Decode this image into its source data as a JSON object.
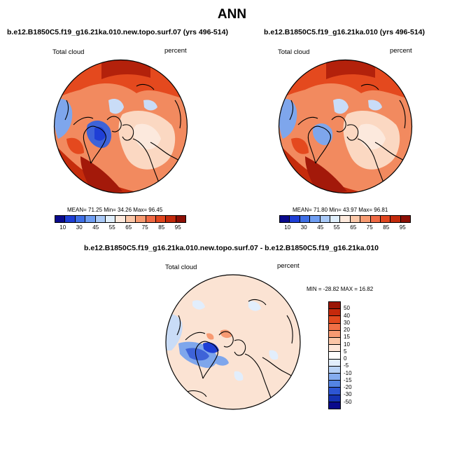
{
  "title": "ANN",
  "panels": [
    {
      "title": "b.e12.B1850C5.f19_g16.21ka.010.new.topo.surf.07 (yrs 496-514)",
      "variable_label": "Total cloud",
      "units_label": "percent",
      "stats": {
        "mean": "71.25",
        "min": "34.26",
        "max": "96.45"
      },
      "stats_text": "MEAN=  71.25  Min=  34.26  Max=  96.45"
    },
    {
      "title": "b.e12.B1850C5.f19_g16.21ka.010 (yrs 496-514)",
      "variable_label": "Total cloud",
      "units_label": "percent",
      "stats": {
        "mean": "71.80",
        "min": "43.97",
        "max": "96.81"
      },
      "stats_text": "MEAN=  71.80  Min=  43.97  Max=  96.81"
    }
  ],
  "diff_panel": {
    "title": "b.e12.B1850C5.f19_g16.21ka.010.new.topo.surf.07 - b.e12.B1850C5.f19_g16.21ka.010",
    "variable_label": "Total cloud",
    "units_label": "percent",
    "minmax_text": "MIN = -28.82 MAX =  16.82",
    "stats": {
      "min": "-28.82",
      "max": "16.82"
    }
  },
  "colorbars": {
    "absolute": {
      "labels": [
        "10",
        "30",
        "45",
        "55",
        "65",
        "75",
        "85",
        "95"
      ],
      "colors": [
        "#0a0a8c",
        "#1f3fd6",
        "#3f6fe6",
        "#6f9ef2",
        "#a9c9f7",
        "#dfeefb",
        "#fde9dc",
        "#fbc7a8",
        "#f79b72",
        "#ef6a45",
        "#e0461f",
        "#c22a0c",
        "#8c0f05"
      ]
    },
    "difference": {
      "labels": [
        "50",
        "40",
        "30",
        "20",
        "15",
        "10",
        "5",
        "0",
        "-5",
        "-10",
        "-15",
        "-20",
        "-30",
        "-50"
      ],
      "colors": [
        "#9a1505",
        "#c5290c",
        "#e24a1f",
        "#f07046",
        "#f79a72",
        "#fbc6a7",
        "#fde6d8",
        "#ffffff",
        "#e2eefc",
        "#b8d2f6",
        "#85acef",
        "#5484e4",
        "#2d55d3",
        "#1532b2",
        "#0a0a8c"
      ]
    }
  },
  "map_colors": {
    "warm_light": "#fbd8c2",
    "warm_mid": "#f28a5f",
    "warm_strong": "#e4491e",
    "warm_dark": "#b3210b",
    "cool_light": "#c9dcf7",
    "cool_mid": "#7ea6ec",
    "cool_strong": "#3e63d8",
    "diff_background": "#fbe3d3"
  }
}
